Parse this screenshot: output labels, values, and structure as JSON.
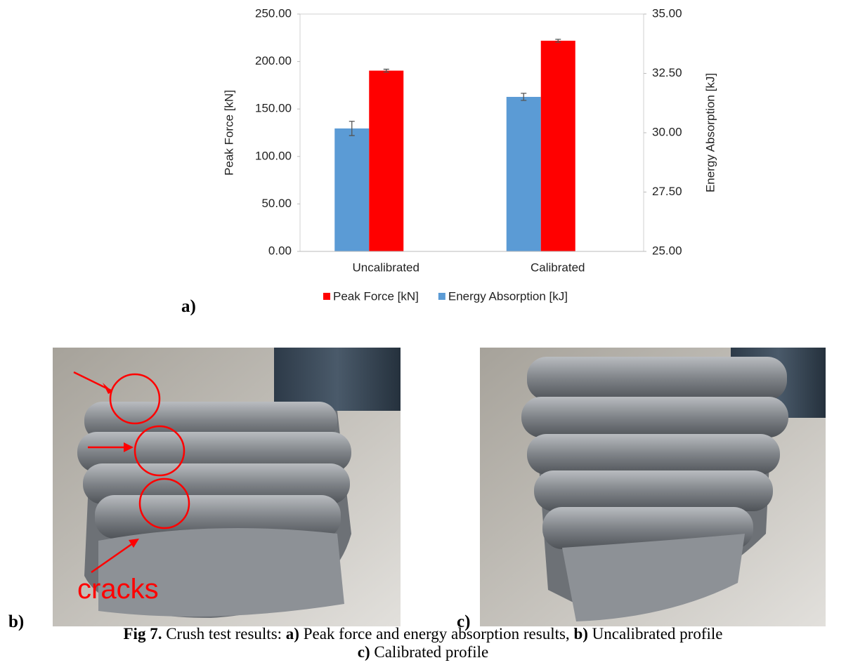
{
  "chart_data": {
    "type": "bar",
    "categories": [
      "Uncalibrated",
      "Calibrated"
    ],
    "series": [
      {
        "name": "Peak Force [kN]",
        "color": "#ff0000",
        "values": [
          190.4,
          221.9
        ],
        "errors": [
          1.5,
          1.5
        ]
      },
      {
        "name": "Energy Absorption [kJ]",
        "color": "#5b9bd5",
        "values": [
          30.18,
          31.51
        ],
        "errors": [
          0.3,
          0.15
        ],
        "axis": "y2"
      }
    ],
    "ylabel": "Peak Force [kN]",
    "y2label": "Energy Absorption [kJ]",
    "ylim": [
      0,
      250
    ],
    "yticks": [
      {
        "value": 0,
        "label": "0.00"
      },
      {
        "value": 50,
        "label": "50.00"
      },
      {
        "value": 100,
        "label": "100.00"
      },
      {
        "value": 150,
        "label": "150.00"
      },
      {
        "value": 200,
        "label": "200.00"
      },
      {
        "value": 250,
        "label": "250.00"
      }
    ],
    "y2lim": [
      25,
      35
    ],
    "y2ticks": [
      {
        "value": 25,
        "label": "25.00"
      },
      {
        "value": 27.5,
        "label": "27.50"
      },
      {
        "value": 30,
        "label": "30.00"
      },
      {
        "value": 32.5,
        "label": "32.50"
      },
      {
        "value": 35,
        "label": "35.00"
      }
    ],
    "legend": "bottom"
  },
  "panel_labels": [
    "a)",
    "b)",
    "c)"
  ],
  "annotations": [
    "cracks"
  ],
  "caption": {
    "lines": [
      [
        {
          "text": "Fig 7.",
          "bold": true
        },
        {
          "text": " Crush test results: ",
          "bold": false
        },
        {
          "text": "a)",
          "bold": true
        },
        {
          "text": " Peak force and energy absorption results, ",
          "bold": false
        },
        {
          "text": "b)",
          "bold": true
        },
        {
          "text": " Uncalibrated profile",
          "bold": false
        }
      ],
      [
        {
          "text": "c)",
          "bold": true
        },
        {
          "text": " Calibrated profile",
          "bold": false
        }
      ]
    ]
  }
}
